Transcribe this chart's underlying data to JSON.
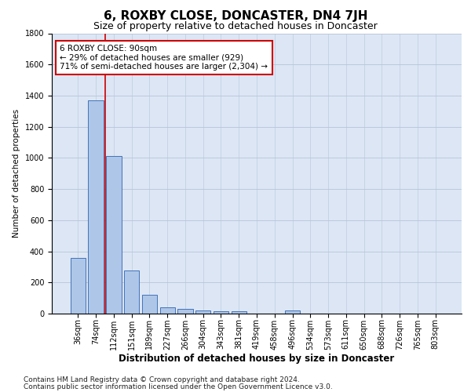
{
  "title": "6, ROXBY CLOSE, DONCASTER, DN4 7JH",
  "subtitle": "Size of property relative to detached houses in Doncaster",
  "xlabel": "Distribution of detached houses by size in Doncaster",
  "ylabel": "Number of detached properties",
  "categories": [
    "36sqm",
    "74sqm",
    "112sqm",
    "151sqm",
    "189sqm",
    "227sqm",
    "266sqm",
    "304sqm",
    "343sqm",
    "381sqm",
    "419sqm",
    "458sqm",
    "496sqm",
    "534sqm",
    "573sqm",
    "611sqm",
    "650sqm",
    "688sqm",
    "726sqm",
    "765sqm",
    "803sqm"
  ],
  "values": [
    355,
    1370,
    1010,
    275,
    120,
    40,
    30,
    22,
    16,
    14,
    0,
    0,
    22,
    0,
    0,
    0,
    0,
    0,
    0,
    0,
    0
  ],
  "bar_color": "#aec6e8",
  "bar_edge_color": "#4472b8",
  "grid_color": "#b8c4d8",
  "bg_color": "#dce6f5",
  "annotation_line1": "6 ROXBY CLOSE: 90sqm",
  "annotation_line2": "← 29% of detached houses are smaller (929)",
  "annotation_line3": "71% of semi-detached houses are larger (2,304) →",
  "annotation_box_color": "#cc0000",
  "property_line_color": "#cc0000",
  "ylim": [
    0,
    1800
  ],
  "footnote1": "Contains HM Land Registry data © Crown copyright and database right 2024.",
  "footnote2": "Contains public sector information licensed under the Open Government Licence v3.0.",
  "title_fontsize": 11,
  "subtitle_fontsize": 9,
  "xlabel_fontsize": 8.5,
  "ylabel_fontsize": 7.5,
  "tick_fontsize": 7,
  "annotation_fontsize": 7.5,
  "footnote_fontsize": 6.5
}
